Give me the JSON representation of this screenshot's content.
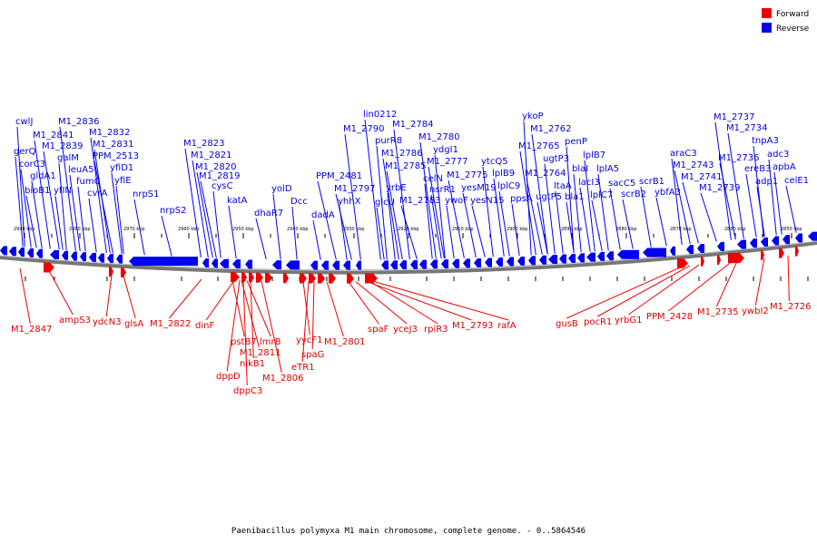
{
  "legend": {
    "forward_label": "Forward",
    "reverse_label": "Reverse",
    "forward_color": "#ee0000",
    "reverse_color": "#0000ee"
  },
  "caption": "Paenibacillus polymyxa M1 main chromosome, complete genome. - 0..5864546",
  "scale_ticks": [
    "2990 kbp",
    "2980 kbp",
    "2970 kbp",
    "2960 kbp",
    "2950 kbp",
    "2940 kbp",
    "2930 kbp",
    "2920 kbp",
    "2910 kbp",
    "2900 kbp",
    "2890 kbp",
    "2880 kbp",
    "2870 kbp",
    "2860 kbp",
    "2850 kbp"
  ],
  "reverse_labels": [
    "cwlJ",
    "gerQ",
    "corC3",
    "bioB1",
    "M1_2841",
    "gldA1",
    "M1_2839",
    "galM",
    "yfIN",
    "leuA5",
    "fumC",
    "cvrA",
    "M1_2836",
    "M1_2832",
    "M1_2831",
    "PPM_2513",
    "yfiD1",
    "yfiE",
    "nrpS1",
    "nrpS2",
    "M1_2823",
    "M1_2821",
    "M1_2820",
    "M1_2819",
    "cysC",
    "katA",
    "dhaR7",
    "yolD",
    "Dcc",
    "dadA",
    "PPM_2481",
    "yhhX",
    "M1_2797",
    "M1_2790",
    "lin0212",
    "purR8",
    "M1_2784",
    "M1_2786",
    "M1_2785",
    "glcU",
    "yrbE",
    "M1_2783",
    "M1_2780",
    "ydgI1",
    "celN",
    "M1_2777",
    "nsrR1",
    "ywoF",
    "M1_2775",
    "yesM19",
    "yesN15",
    "ytcQ5",
    "lplB9",
    "lplC9",
    "ppsA",
    "ykoP",
    "M1_2762",
    "M1_2765",
    "M1_2764",
    "ugtP3",
    "ugtP5",
    "penP",
    "ltaA",
    "blaI",
    "bla1",
    "lacI3",
    "lplB7",
    "lplA5",
    "lplC7",
    "sacC5",
    "scrB2",
    "scrB1",
    "ybfA3",
    "araC3",
    "M1_2743",
    "M1_2741",
    "M1_2739",
    "M1_2737",
    "M1_2734",
    "tnpA3",
    "M1_2736",
    "ereB3",
    "adc3",
    "adp1",
    "apbA",
    "celE1"
  ],
  "forward_labels": [
    "M1_2847",
    "ampS3",
    "ydcN3",
    "glsA",
    "M1_2822",
    "dinF",
    "pstB7",
    "M1_2811",
    "lmrB",
    "nikB1",
    "dppD",
    "dppC3",
    "M1_2806",
    "yycF1",
    "eTR1",
    "spaG",
    "M1_2801",
    "spaF",
    "yceJ3",
    "rpiR3",
    "M1_2793",
    "rafA",
    "gusB",
    "pocR1",
    "yrbG1",
    "PPM_2428",
    "M1_2735",
    "ywbI2",
    "M1_2726"
  ]
}
